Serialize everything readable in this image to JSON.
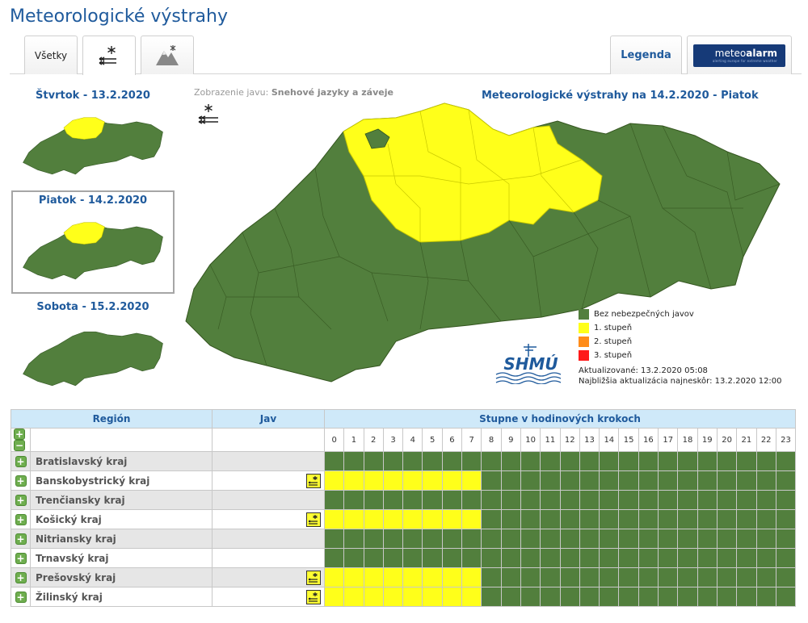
{
  "page": {
    "title": "Meteorologické výstrahy"
  },
  "tabs": {
    "all_label": "Všetky",
    "legend_label": "Legenda",
    "meteoalarm": {
      "word_a": "meteo",
      "word_b": "alarm",
      "subline": "alerting europe for extreme weather"
    }
  },
  "days": [
    {
      "label": "Štvrtok - 13.2.2020",
      "selected": false,
      "level": 1
    },
    {
      "label": "Piatok - 14.2.2020",
      "selected": true,
      "level": 1
    },
    {
      "label": "Sobota - 15.2.2020",
      "selected": false,
      "level": 0
    }
  ],
  "map": {
    "display_prefix": "Zobrazenie javu:",
    "display_value": "Snehové jazyky a záveje",
    "title": "Meteorologické výstrahy na 14.2.2020 - Piatok"
  },
  "legend": [
    {
      "label": "Bez nebezpečných javov",
      "color": "#527f3d"
    },
    {
      "label": "1. stupeň",
      "color": "#ffff1a"
    },
    {
      "label": "2. stupeň",
      "color": "#ff8c1a"
    },
    {
      "label": "3. stupeň",
      "color": "#ff1a1a"
    }
  ],
  "shmu_label": "SHMÚ",
  "update": {
    "updated": "Aktualizované: 13.2.2020 05:08",
    "next": "Najbližšia aktualizácia najneskôr: 13.2.2020 12:00"
  },
  "table": {
    "col_region": "Región",
    "col_jav": "Jav",
    "col_steps": "Stupne v hodinových krokoch",
    "hours": [
      "0",
      "1",
      "2",
      "3",
      "4",
      "5",
      "6",
      "7",
      "8",
      "9",
      "10",
      "11",
      "12",
      "13",
      "14",
      "15",
      "16",
      "17",
      "18",
      "19",
      "20",
      "21",
      "22",
      "23"
    ],
    "rows": [
      {
        "name": "Bratislavský kraj",
        "has_warning": false,
        "levels": [
          0,
          0,
          0,
          0,
          0,
          0,
          0,
          0,
          0,
          0,
          0,
          0,
          0,
          0,
          0,
          0,
          0,
          0,
          0,
          0,
          0,
          0,
          0,
          0
        ]
      },
      {
        "name": "Banskobystrický kraj",
        "has_warning": true,
        "levels": [
          1,
          1,
          1,
          1,
          1,
          1,
          1,
          1,
          0,
          0,
          0,
          0,
          0,
          0,
          0,
          0,
          0,
          0,
          0,
          0,
          0,
          0,
          0,
          0
        ]
      },
      {
        "name": "Trenčiansky kraj",
        "has_warning": false,
        "levels": [
          0,
          0,
          0,
          0,
          0,
          0,
          0,
          0,
          0,
          0,
          0,
          0,
          0,
          0,
          0,
          0,
          0,
          0,
          0,
          0,
          0,
          0,
          0,
          0
        ]
      },
      {
        "name": "Košický kraj",
        "has_warning": true,
        "levels": [
          1,
          1,
          1,
          1,
          1,
          1,
          1,
          1,
          0,
          0,
          0,
          0,
          0,
          0,
          0,
          0,
          0,
          0,
          0,
          0,
          0,
          0,
          0,
          0
        ]
      },
      {
        "name": "Nitriansky kraj",
        "has_warning": false,
        "levels": [
          0,
          0,
          0,
          0,
          0,
          0,
          0,
          0,
          0,
          0,
          0,
          0,
          0,
          0,
          0,
          0,
          0,
          0,
          0,
          0,
          0,
          0,
          0,
          0
        ]
      },
      {
        "name": "Trnavský kraj",
        "has_warning": false,
        "levels": [
          0,
          0,
          0,
          0,
          0,
          0,
          0,
          0,
          0,
          0,
          0,
          0,
          0,
          0,
          0,
          0,
          0,
          0,
          0,
          0,
          0,
          0,
          0,
          0
        ]
      },
      {
        "name": "Prešovský kraj",
        "has_warning": true,
        "levels": [
          1,
          1,
          1,
          1,
          1,
          1,
          1,
          1,
          0,
          0,
          0,
          0,
          0,
          0,
          0,
          0,
          0,
          0,
          0,
          0,
          0,
          0,
          0,
          0
        ]
      },
      {
        "name": "Žilinský kraj",
        "has_warning": true,
        "levels": [
          1,
          1,
          1,
          1,
          1,
          1,
          1,
          1,
          0,
          0,
          0,
          0,
          0,
          0,
          0,
          0,
          0,
          0,
          0,
          0,
          0,
          0,
          0,
          0
        ]
      }
    ]
  },
  "colors": {
    "green": "#527f3d",
    "yellow": "#ffff1a",
    "header_blue": "#1f5a9c"
  }
}
